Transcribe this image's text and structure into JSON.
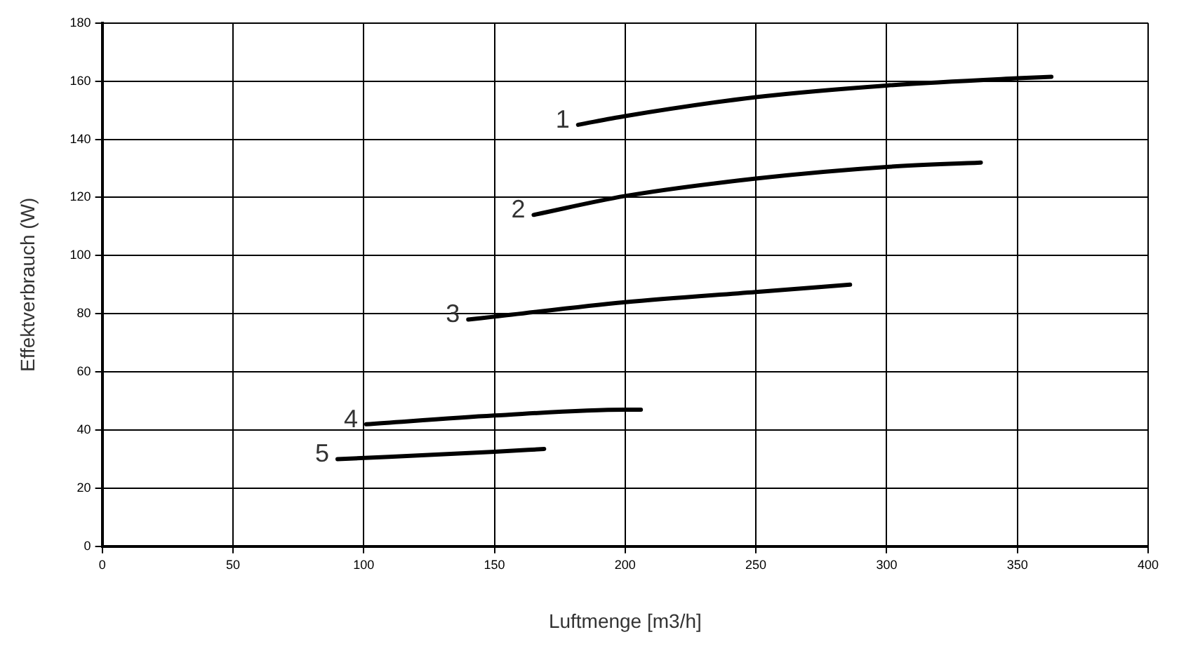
{
  "chart_data": {
    "type": "line",
    "xlabel": "Luftmenge [m3/h]",
    "ylabel": "Effektverbrauch (W)",
    "xlim": [
      0,
      400
    ],
    "xticks": [
      0,
      50,
      100,
      150,
      200,
      250,
      300,
      350,
      400
    ],
    "ylim": [
      0,
      180
    ],
    "yticks": [
      0,
      20,
      40,
      60,
      80,
      100,
      120,
      140,
      160,
      180
    ],
    "grid": true,
    "legend": false,
    "marker": "none",
    "line_style": "solid",
    "series": [
      {
        "name": "1",
        "color": "#000000",
        "x": [
          182,
          200,
          250,
          300,
          350,
          363
        ],
        "values": [
          145,
          148,
          154.5,
          158.5,
          161,
          161.5
        ]
      },
      {
        "name": "2",
        "color": "#000000",
        "x": [
          165,
          200,
          250,
          300,
          336
        ],
        "values": [
          114,
          120.5,
          126.5,
          130.5,
          132
        ]
      },
      {
        "name": "3",
        "color": "#000000",
        "x": [
          140,
          150,
          200,
          250,
          286
        ],
        "values": [
          78,
          79,
          84,
          87.5,
          90
        ]
      },
      {
        "name": "4",
        "color": "#000000",
        "x": [
          101,
          150,
          200,
          206
        ],
        "values": [
          42,
          45,
          47,
          47
        ]
      },
      {
        "name": "5",
        "color": "#000000",
        "x": [
          90,
          150,
          169
        ],
        "values": [
          30,
          32.5,
          33.5
        ]
      }
    ]
  }
}
